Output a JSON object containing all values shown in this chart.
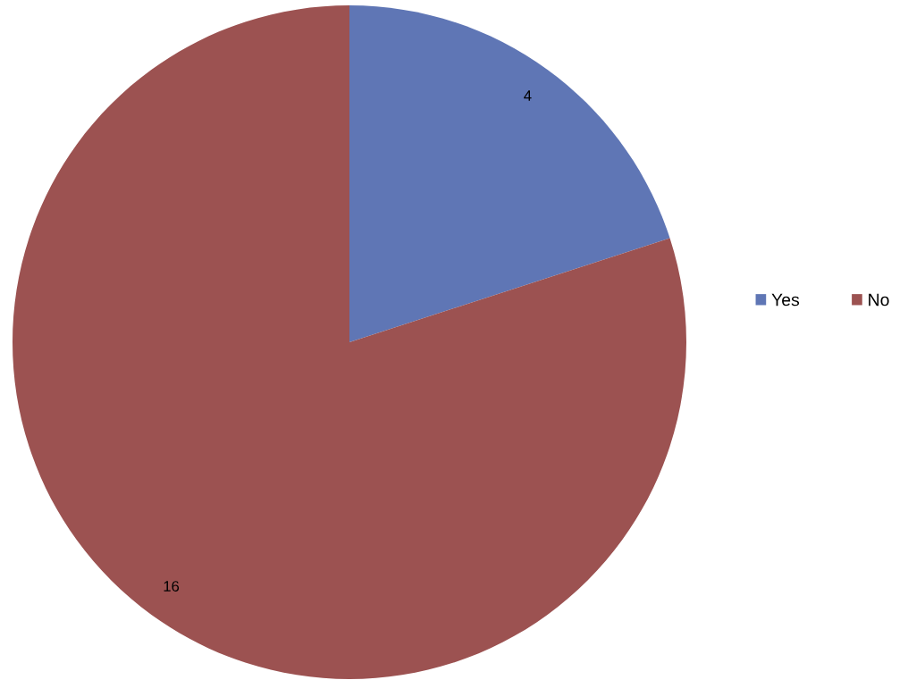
{
  "chart_data": {
    "type": "pie",
    "categories": [
      "Yes",
      "No"
    ],
    "values": [
      4,
      16
    ],
    "colors": [
      "#5f76b5",
      "#9c5251"
    ],
    "data_labels": true,
    "legend": "right"
  }
}
